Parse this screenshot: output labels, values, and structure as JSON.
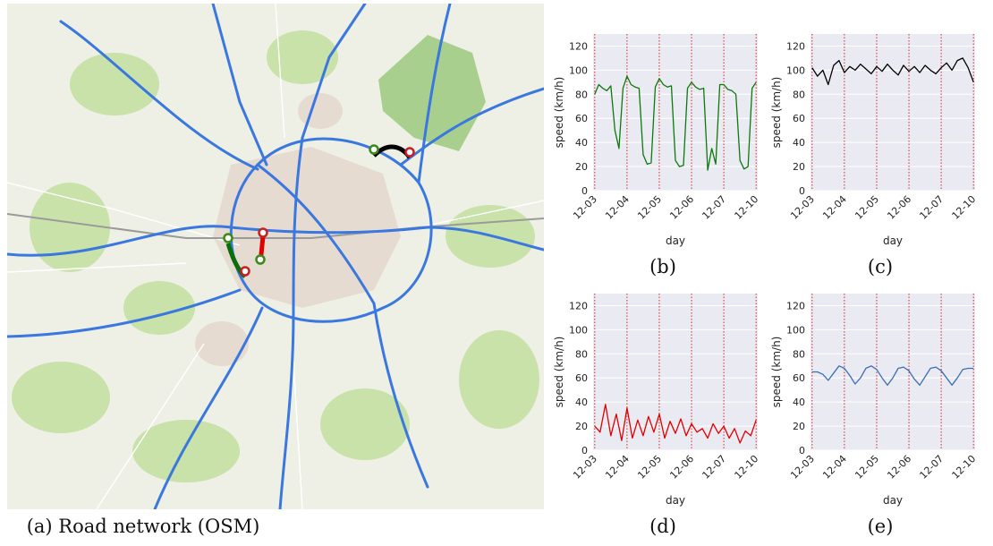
{
  "map": {
    "caption": "(a) Road network (OSM)",
    "colors": {
      "background": "#eef0e6",
      "park": "#c8e2a9",
      "forest": "#a9cf8e",
      "urban": "#e6dbd0",
      "highway": "#3a78e0",
      "route_green": "#0b6e0b",
      "route_red": "#e00000",
      "route_black": "#000000"
    }
  },
  "chart_data": [
    {
      "id": "b",
      "type": "line",
      "caption": "(b)",
      "xlabel": "day",
      "ylabel": "speed (km/h)",
      "ylim": [
        0,
        130
      ],
      "yticks": [
        0,
        20,
        40,
        60,
        80,
        100,
        120
      ],
      "xticks": [
        "12-03",
        "12-04",
        "12-05",
        "12-06",
        "12-07",
        "12-10"
      ],
      "vlines": [
        "12-03 00:00",
        "12-04 00:00",
        "12-05 00:00",
        "12-06 00:00",
        "12-07 00:00",
        "12-08 00:00"
      ],
      "grid": true,
      "color": "#0b7a0b",
      "series": [
        {
          "x": [
            "12-03 00:00",
            "12-03 03:00",
            "12-03 06:00",
            "12-03 09:00",
            "12-03 12:00",
            "12-03 15:00",
            "12-03 18:00",
            "12-03 21:00",
            "12-04 00:00",
            "12-04 03:00",
            "12-04 06:00",
            "12-04 09:00",
            "12-04 12:00",
            "12-04 15:00",
            "12-04 18:00",
            "12-04 21:00",
            "12-05 00:00",
            "12-05 03:00",
            "12-05 06:00",
            "12-05 09:00",
            "12-05 12:00",
            "12-05 15:00",
            "12-05 18:00",
            "12-05 21:00",
            "12-06 00:00",
            "12-06 03:00",
            "12-06 06:00",
            "12-06 09:00",
            "12-06 12:00",
            "12-06 15:00",
            "12-06 18:00",
            "12-06 21:00",
            "12-07 00:00",
            "12-07 03:00",
            "12-07 06:00",
            "12-07 09:00",
            "12-07 12:00",
            "12-07 15:00",
            "12-07 18:00",
            "12-07 21:00",
            "12-08 00:00"
          ],
          "values": [
            80,
            88,
            85,
            83,
            87,
            50,
            35,
            85,
            95,
            88,
            86,
            85,
            30,
            22,
            23,
            86,
            93,
            88,
            86,
            87,
            25,
            20,
            21,
            85,
            90,
            86,
            84,
            85,
            17,
            35,
            22,
            88,
            88,
            84,
            83,
            80,
            25,
            18,
            20,
            85,
            90
          ]
        }
      ]
    },
    {
      "id": "c",
      "type": "line",
      "caption": "(c)",
      "xlabel": "day",
      "ylabel": "speed (km/h)",
      "ylim": [
        0,
        130
      ],
      "yticks": [
        0,
        20,
        40,
        60,
        80,
        100,
        120
      ],
      "xticks": [
        "12-03",
        "12-04",
        "12-05",
        "12-06",
        "12-07",
        "12-10"
      ],
      "vlines": [
        "12-03 00:00",
        "12-04 00:00",
        "12-05 00:00",
        "12-06 00:00",
        "12-07 00:00",
        "12-08 00:00"
      ],
      "grid": true,
      "color": "#000000",
      "series": [
        {
          "x": [
            "12-03 00:00",
            "12-03 04:00",
            "12-03 08:00",
            "12-03 12:00",
            "12-03 16:00",
            "12-03 20:00",
            "12-04 00:00",
            "12-04 04:00",
            "12-04 08:00",
            "12-04 12:00",
            "12-04 16:00",
            "12-04 20:00",
            "12-05 00:00",
            "12-05 04:00",
            "12-05 08:00",
            "12-05 12:00",
            "12-05 16:00",
            "12-05 20:00",
            "12-06 00:00",
            "12-06 04:00",
            "12-06 08:00",
            "12-06 12:00",
            "12-06 16:00",
            "12-06 20:00",
            "12-07 00:00",
            "12-07 04:00",
            "12-07 08:00",
            "12-07 12:00",
            "12-07 16:00",
            "12-07 20:00",
            "12-08 00:00"
          ],
          "values": [
            102,
            95,
            100,
            88,
            104,
            108,
            98,
            103,
            100,
            105,
            101,
            97,
            103,
            99,
            105,
            100,
            96,
            104,
            99,
            103,
            98,
            104,
            100,
            97,
            102,
            106,
            100,
            108,
            110,
            102,
            90
          ]
        }
      ]
    },
    {
      "id": "d",
      "type": "line",
      "caption": "(d)",
      "xlabel": "day",
      "ylabel": "speed (km/h)",
      "ylim": [
        0,
        130
      ],
      "yticks": [
        0,
        20,
        40,
        60,
        80,
        100,
        120
      ],
      "xticks": [
        "12-03",
        "12-04",
        "12-05",
        "12-06",
        "12-07",
        "12-10"
      ],
      "vlines": [
        "12-03 00:00",
        "12-04 00:00",
        "12-05 00:00",
        "12-06 00:00",
        "12-07 00:00",
        "12-08 00:00"
      ],
      "grid": true,
      "color": "#e00000",
      "series": [
        {
          "x": [
            "12-03 00:00",
            "12-03 04:00",
            "12-03 08:00",
            "12-03 12:00",
            "12-03 16:00",
            "12-03 20:00",
            "12-04 00:00",
            "12-04 04:00",
            "12-04 08:00",
            "12-04 12:00",
            "12-04 16:00",
            "12-04 20:00",
            "12-05 00:00",
            "12-05 04:00",
            "12-05 08:00",
            "12-05 12:00",
            "12-05 16:00",
            "12-05 20:00",
            "12-06 00:00",
            "12-06 04:00",
            "12-06 08:00",
            "12-06 12:00",
            "12-06 16:00",
            "12-06 20:00",
            "12-07 00:00",
            "12-07 04:00",
            "12-07 08:00",
            "12-07 12:00",
            "12-07 16:00",
            "12-07 20:00",
            "12-08 00:00"
          ],
          "values": [
            20,
            15,
            38,
            12,
            30,
            8,
            35,
            10,
            25,
            12,
            28,
            15,
            30,
            10,
            24,
            14,
            26,
            12,
            22,
            15,
            18,
            10,
            22,
            14,
            20,
            10,
            18,
            6,
            16,
            12,
            25
          ]
        }
      ]
    },
    {
      "id": "e",
      "type": "line",
      "caption": "(e)",
      "xlabel": "day",
      "ylabel": "speed (km/h)",
      "ylim": [
        0,
        130
      ],
      "yticks": [
        0,
        20,
        40,
        60,
        80,
        100,
        120
      ],
      "xticks": [
        "12-03",
        "12-04",
        "12-05",
        "12-06",
        "12-07",
        "12-10"
      ],
      "vlines": [
        "12-03 00:00",
        "12-04 00:00",
        "12-05 00:00",
        "12-06 00:00",
        "12-07 00:00",
        "12-08 00:00"
      ],
      "grid": true,
      "color": "#3b6fb6",
      "series": [
        {
          "x": [
            "12-03 00:00",
            "12-03 04:00",
            "12-03 08:00",
            "12-03 12:00",
            "12-03 16:00",
            "12-03 20:00",
            "12-04 00:00",
            "12-04 04:00",
            "12-04 08:00",
            "12-04 12:00",
            "12-04 16:00",
            "12-04 20:00",
            "12-05 00:00",
            "12-05 04:00",
            "12-05 08:00",
            "12-05 12:00",
            "12-05 16:00",
            "12-05 20:00",
            "12-06 00:00",
            "12-06 04:00",
            "12-06 08:00",
            "12-06 12:00",
            "12-06 16:00",
            "12-06 20:00",
            "12-07 00:00",
            "12-07 04:00",
            "12-07 08:00",
            "12-07 12:00",
            "12-07 16:00",
            "12-07 20:00",
            "12-08 00:00"
          ],
          "values": [
            65,
            65,
            63,
            58,
            64,
            70,
            68,
            62,
            55,
            60,
            68,
            70,
            67,
            60,
            54,
            60,
            68,
            69,
            66,
            59,
            54,
            61,
            68,
            69,
            66,
            60,
            54,
            60,
            67,
            68,
            68
          ]
        }
      ]
    }
  ]
}
